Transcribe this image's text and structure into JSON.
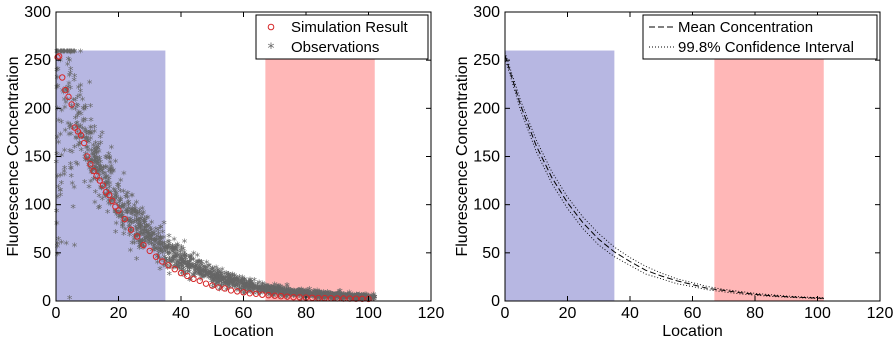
{
  "chart_data": [
    {
      "type": "scatter",
      "xlabel": "Location",
      "ylabel": "Fluorescence Concentration",
      "xlim": [
        0,
        120
      ],
      "ylim": [
        0,
        300
      ],
      "xticks": [
        "0",
        "20",
        "40",
        "60",
        "80",
        "100",
        "120"
      ],
      "yticks": [
        "0",
        "50",
        "100",
        "150",
        "200",
        "250",
        "300"
      ],
      "grid": false,
      "legend_position": "top-right",
      "regions": [
        {
          "x_start": 0,
          "x_end": 35,
          "y_top": 260,
          "color": "#aaaadd"
        },
        {
          "x_start": 67,
          "x_end": 102,
          "y_top": 260,
          "color": "#ffaaaa"
        }
      ],
      "legend": [
        {
          "label": "Simulation Result",
          "marker": "circle",
          "color": "#d62728"
        },
        {
          "label": "Observations",
          "marker": "star",
          "color": "#666666"
        }
      ],
      "series": [
        {
          "name": "Simulation Result",
          "marker": "circle",
          "color": "#d62728",
          "x": [
            0.5,
            1,
            2,
            3,
            4,
            5,
            6,
            7,
            8,
            9,
            10,
            11,
            12,
            13,
            14,
            15,
            16,
            17,
            18,
            19,
            20,
            22,
            24,
            26,
            28,
            30,
            32,
            34,
            36,
            38,
            40,
            42,
            44,
            46,
            48,
            50,
            52,
            54,
            56,
            58,
            60,
            62,
            64,
            66,
            68,
            70,
            72,
            74,
            76,
            78,
            80,
            82,
            84,
            86,
            88,
            90,
            92,
            94,
            96,
            98,
            100
          ],
          "y": [
            253,
            254,
            232,
            219,
            212,
            204,
            180,
            176,
            172,
            164,
            150,
            142,
            135,
            130,
            125,
            120,
            113,
            110,
            104,
            98,
            94,
            85,
            74,
            67,
            58,
            52,
            46,
            41,
            37,
            33,
            29,
            26,
            23,
            21,
            18,
            16,
            14,
            13,
            11,
            10,
            9,
            8,
            7.5,
            6.5,
            6,
            5.5,
            5,
            4.5,
            4,
            3.8,
            3.5,
            3.3,
            3.1,
            3,
            2.8,
            2.7,
            2.6,
            2.5,
            2.4,
            2.3,
            2.2
          ]
        },
        {
          "name": "Observations",
          "marker": "star",
          "color": "#666666",
          "curve": {
            "a": 255,
            "k": 0.046
          },
          "noise_pattern": "spread decreasing with location; strong scatter near origin",
          "x_range": [
            0,
            102
          ],
          "count": 1800
        }
      ]
    },
    {
      "type": "line",
      "xlabel": "Location",
      "ylabel": "Fluorescence Concentration",
      "xlim": [
        0,
        120
      ],
      "ylim": [
        0,
        300
      ],
      "xticks": [
        "0",
        "20",
        "40",
        "60",
        "80",
        "100",
        "120"
      ],
      "yticks": [
        "0",
        "50",
        "100",
        "150",
        "200",
        "250",
        "300"
      ],
      "grid": false,
      "legend_position": "top-right",
      "regions": [
        {
          "x_start": 0,
          "x_end": 35,
          "y_top": 260,
          "color": "#aaaadd"
        },
        {
          "x_start": 67,
          "x_end": 102,
          "y_top": 260,
          "color": "#ffaaaa"
        }
      ],
      "legend": [
        {
          "label": "Mean Concentration",
          "style": "dashed",
          "color": "#000000"
        },
        {
          "label": "99.8% Confidence Interval",
          "style": "dotted",
          "color": "#000000"
        }
      ],
      "series": [
        {
          "name": "Mean Concentration",
          "style": "dashed",
          "x": [
            0,
            5,
            10,
            15,
            20,
            25,
            30,
            35,
            40,
            45,
            50,
            55,
            60,
            65,
            70,
            75,
            80,
            85,
            90,
            95,
            100,
            102
          ],
          "y": [
            255,
            203,
            161,
            128,
            102,
            81,
            64,
            51,
            41,
            32,
            26,
            21,
            17,
            13,
            11,
            8.7,
            7,
            5.6,
            4.5,
            3.7,
            3,
            2.8
          ]
        },
        {
          "name": "99.8% Confidence Interval (upper)",
          "style": "dotted",
          "x": [
            0,
            5,
            10,
            15,
            20,
            25,
            30,
            35,
            40,
            45,
            50,
            55,
            60,
            65,
            70,
            75,
            80,
            85,
            90,
            95,
            100,
            102
          ],
          "y": [
            258,
            208,
            167,
            134,
            108,
            87,
            70,
            56,
            45,
            36,
            29,
            23,
            19,
            15,
            12,
            10,
            8,
            6.5,
            5.2,
            4.3,
            3.5,
            3.3
          ]
        },
        {
          "name": "99.8% Confidence Interval (lower)",
          "style": "dotted",
          "x": [
            0,
            5,
            10,
            15,
            20,
            25,
            30,
            35,
            40,
            45,
            50,
            55,
            60,
            65,
            70,
            75,
            80,
            85,
            90,
            95,
            100,
            102
          ],
          "y": [
            252,
            198,
            155,
            122,
            96,
            75,
            58,
            46,
            37,
            28,
            23,
            18,
            15,
            11.5,
            9.5,
            7.5,
            6,
            4.8,
            3.9,
            3.2,
            2.6,
            2.4
          ]
        }
      ]
    }
  ]
}
